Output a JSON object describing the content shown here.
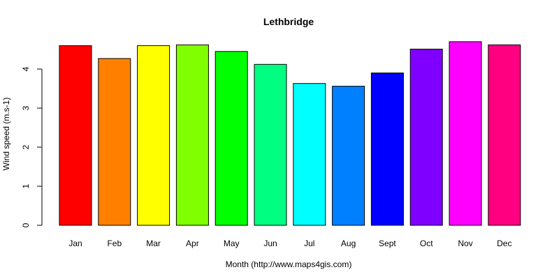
{
  "chart_data": {
    "type": "bar",
    "title": "Lethbridge",
    "xlabel": "Month (http://www.maps4gis.com)",
    "ylabel": "Wind speed (m.s-1)",
    "categories": [
      "Jan",
      "Feb",
      "Mar",
      "Apr",
      "May",
      "Jun",
      "Jul",
      "Aug",
      "Sept",
      "Oct",
      "Nov",
      "Dec"
    ],
    "values": [
      4.6,
      4.27,
      4.6,
      4.62,
      4.45,
      4.12,
      3.63,
      3.56,
      3.9,
      4.51,
      4.7,
      4.62
    ],
    "colors": [
      "#FF0000",
      "#FF8000",
      "#FFFF00",
      "#80FF00",
      "#00FF00",
      "#00FF80",
      "#00FFFF",
      "#0080FF",
      "#0000FF",
      "#8000FF",
      "#FF00FF",
      "#FF0080"
    ],
    "yticks": [
      0,
      1,
      2,
      3,
      4
    ],
    "ylim": [
      0,
      4.7
    ],
    "grid": false,
    "legend": "none"
  }
}
